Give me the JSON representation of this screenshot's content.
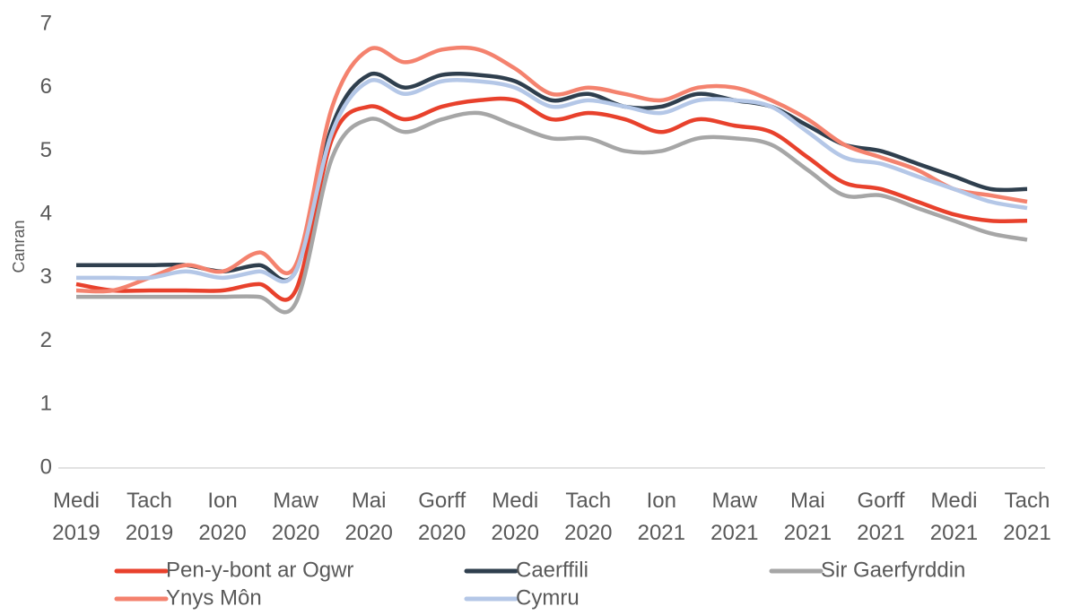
{
  "chart_data": {
    "type": "line",
    "y_label": "Canran",
    "categories": [
      "Medi 2019",
      null,
      "Tach 2019",
      null,
      "Ion 2020",
      null,
      "Maw 2020",
      null,
      "Mai 2020",
      null,
      "Gorff 2020",
      null,
      "Medi 2020",
      null,
      "Tach 2020",
      null,
      "Ion 2021",
      null,
      "Maw 2021",
      null,
      "Mai 2021",
      null,
      "Gorff 2021",
      null,
      "Medi 2021",
      null,
      "Tach 2021"
    ],
    "series": [
      {
        "name": "Pen-y-bont ar Ogwr",
        "color": "#e8412c",
        "values": [
          2.9,
          2.8,
          2.8,
          2.8,
          2.8,
          2.9,
          2.8,
          5.2,
          5.7,
          5.5,
          5.7,
          5.8,
          5.8,
          5.5,
          5.6,
          5.5,
          5.3,
          5.5,
          5.4,
          5.3,
          4.9,
          4.5,
          4.4,
          4.2,
          4.0,
          3.9,
          3.9
        ]
      },
      {
        "name": "Caerffili",
        "color": "#2f3f4e",
        "values": [
          3.2,
          3.2,
          3.2,
          3.2,
          3.1,
          3.2,
          3.1,
          5.4,
          6.2,
          6.0,
          6.2,
          6.2,
          6.1,
          5.8,
          5.9,
          5.7,
          5.7,
          5.9,
          5.8,
          5.7,
          5.4,
          5.1,
          5.0,
          4.8,
          4.6,
          4.4,
          4.4
        ]
      },
      {
        "name": "Sir Gaerfyrddin",
        "color": "#a6a6a6",
        "values": [
          2.7,
          2.7,
          2.7,
          2.7,
          2.7,
          2.7,
          2.6,
          4.9,
          5.5,
          5.3,
          5.5,
          5.6,
          5.4,
          5.2,
          5.2,
          5.0,
          5.0,
          5.2,
          5.2,
          5.1,
          4.7,
          4.3,
          4.3,
          4.1,
          3.9,
          3.7,
          3.6
        ]
      },
      {
        "name": "Ynys Môn",
        "color": "#f4826e",
        "values": [
          2.8,
          2.8,
          3.0,
          3.2,
          3.1,
          3.4,
          3.2,
          5.7,
          6.6,
          6.4,
          6.6,
          6.6,
          6.3,
          5.9,
          6.0,
          5.9,
          5.8,
          6.0,
          6.0,
          5.8,
          5.5,
          5.1,
          4.9,
          4.7,
          4.4,
          4.3,
          4.2
        ]
      },
      {
        "name": "Cymru",
        "color": "#b4c7e7",
        "values": [
          3.0,
          3.0,
          3.0,
          3.1,
          3.0,
          3.1,
          3.1,
          5.3,
          6.1,
          5.9,
          6.1,
          6.1,
          6.0,
          5.7,
          5.8,
          5.7,
          5.6,
          5.8,
          5.8,
          5.7,
          5.3,
          4.9,
          4.8,
          4.6,
          4.4,
          4.2,
          4.1
        ]
      }
    ],
    "ylim": [
      0,
      7
    ],
    "yticks": [
      0,
      1,
      2,
      3,
      4,
      5,
      6,
      7
    ],
    "grid": false
  }
}
